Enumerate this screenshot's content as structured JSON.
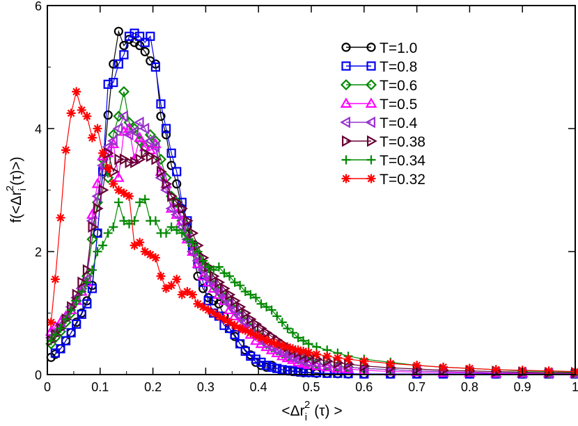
{
  "chart_data": {
    "type": "line",
    "title": "",
    "xlabel": "<Δr_i^2 (τ) >",
    "ylabel": "f(<Δr_i^2(τ)>)",
    "xlim": [
      0,
      1
    ],
    "ylim": [
      0,
      6
    ],
    "xticks": [
      "0",
      "0.1",
      "0.2",
      "0.3",
      "0.4",
      "0.5",
      "0.6",
      "0.7",
      "0.8",
      "0.9",
      "1"
    ],
    "yticks": [
      "0",
      "2",
      "4",
      "6"
    ],
    "legend_position": "top-right",
    "series": [
      {
        "name": "T=1.0",
        "color": "#000000",
        "marker": "circle",
        "x": [
          0.007,
          0.015,
          0.025,
          0.035,
          0.045,
          0.055,
          0.065,
          0.075,
          0.085,
          0.095,
          0.105,
          0.115,
          0.125,
          0.135,
          0.145,
          0.155,
          0.165,
          0.175,
          0.185,
          0.195,
          0.205,
          0.215,
          0.225,
          0.235,
          0.245,
          0.255,
          0.265,
          0.275,
          0.285,
          0.295,
          0.305,
          0.315,
          0.325,
          0.335,
          0.345,
          0.355,
          0.365,
          0.375,
          0.385,
          0.395,
          0.405,
          0.415,
          0.425,
          0.435,
          0.445,
          0.455,
          0.465,
          0.475,
          0.485,
          0.495,
          0.51,
          0.53,
          0.55,
          0.57,
          0.6,
          0.65,
          0.7,
          0.75,
          0.8,
          0.85,
          0.9,
          0.95,
          1.0
        ],
        "values": [
          0.28,
          0.33,
          0.42,
          0.55,
          0.68,
          0.85,
          1.0,
          1.2,
          1.45,
          2.3,
          3.3,
          4.22,
          5.05,
          5.58,
          5.35,
          5.45,
          5.4,
          5.35,
          5.25,
          5.1,
          5.05,
          4.2,
          3.9,
          3.4,
          3.1,
          2.7,
          2.4,
          2.0,
          1.6,
          1.4,
          1.25,
          1.2,
          1.15,
          0.95,
          0.75,
          0.62,
          0.5,
          0.4,
          0.32,
          0.2,
          0.15,
          0.12,
          0.15,
          0.1,
          0.08,
          0.06,
          0.05,
          0.04,
          0.03,
          0.03,
          0.02,
          0.02,
          0.015,
          0.01,
          0.01,
          0.01,
          0.01,
          0.01,
          0.01,
          0.01,
          0.01,
          0.01,
          0.01
        ]
      },
      {
        "name": "T=0.8",
        "color": "#0000ee",
        "marker": "square",
        "x": [
          0.015,
          0.025,
          0.035,
          0.045,
          0.055,
          0.065,
          0.075,
          0.085,
          0.095,
          0.105,
          0.115,
          0.125,
          0.135,
          0.145,
          0.155,
          0.165,
          0.175,
          0.185,
          0.195,
          0.205,
          0.215,
          0.225,
          0.235,
          0.245,
          0.255,
          0.265,
          0.275,
          0.285,
          0.295,
          0.305,
          0.315,
          0.325,
          0.335,
          0.345,
          0.355,
          0.365,
          0.375,
          0.385,
          0.395,
          0.405,
          0.415,
          0.425,
          0.435,
          0.445,
          0.455,
          0.465,
          0.475,
          0.485,
          0.495,
          0.51,
          0.53,
          0.55,
          0.57,
          0.6,
          0.65,
          0.7,
          0.75,
          0.8,
          0.85,
          0.9,
          0.95,
          1.0
        ],
        "values": [
          0.35,
          0.42,
          0.55,
          0.68,
          0.82,
          0.98,
          1.15,
          1.4,
          2.3,
          3.3,
          4.72,
          4.75,
          5.05,
          5.2,
          5.5,
          5.55,
          5.5,
          5.4,
          5.5,
          5.0,
          4.4,
          4.0,
          3.6,
          3.3,
          2.8,
          2.5,
          2.1,
          1.8,
          1.5,
          1.2,
          1.0,
          0.95,
          0.8,
          0.75,
          0.65,
          0.5,
          0.38,
          0.3,
          0.25,
          0.2,
          0.15,
          0.12,
          0.1,
          0.08,
          0.07,
          0.06,
          0.05,
          0.04,
          0.035,
          0.03,
          0.02,
          0.02,
          0.015,
          0.01,
          0.01,
          0.01,
          0.01,
          0.01,
          0.01,
          0.01,
          0.01,
          0.01
        ]
      },
      {
        "name": "T=0.6",
        "color": "#008800",
        "marker": "diamond",
        "x": [
          0.007,
          0.015,
          0.025,
          0.035,
          0.045,
          0.055,
          0.065,
          0.075,
          0.085,
          0.095,
          0.105,
          0.115,
          0.125,
          0.135,
          0.145,
          0.155,
          0.165,
          0.175,
          0.185,
          0.195,
          0.205,
          0.215,
          0.225,
          0.235,
          0.245,
          0.255,
          0.265,
          0.275,
          0.285,
          0.295,
          0.305,
          0.315,
          0.325,
          0.335,
          0.345,
          0.355,
          0.365,
          0.375,
          0.385,
          0.395,
          0.405,
          0.415,
          0.425,
          0.435,
          0.445,
          0.455,
          0.465,
          0.475,
          0.485,
          0.495,
          0.51,
          0.53,
          0.55,
          0.57,
          0.6,
          0.65,
          0.7,
          0.75,
          0.8,
          0.85,
          0.9,
          0.95,
          1.0
        ],
        "values": [
          0.5,
          0.6,
          0.7,
          0.85,
          1.0,
          1.2,
          1.4,
          1.6,
          2.2,
          2.8,
          3.5,
          3.2,
          3.9,
          4.2,
          4.6,
          4.1,
          4.0,
          3.8,
          3.7,
          3.9,
          3.8,
          3.5,
          3.2,
          2.9,
          2.8,
          2.5,
          2.3,
          2.1,
          1.95,
          1.75,
          1.6,
          1.45,
          1.35,
          1.25,
          1.15,
          1.05,
          0.95,
          0.85,
          0.75,
          0.65,
          0.6,
          0.5,
          0.45,
          0.4,
          0.35,
          0.3,
          0.28,
          0.25,
          0.22,
          0.2,
          0.18,
          0.15,
          0.13,
          0.12,
          0.1,
          0.08,
          0.06,
          0.05,
          0.04,
          0.03,
          0.03,
          0.02,
          0.02
        ]
      },
      {
        "name": "T=0.5",
        "color": "#ff00ff",
        "marker": "triangle-up",
        "x": [
          0.007,
          0.015,
          0.025,
          0.035,
          0.045,
          0.055,
          0.065,
          0.075,
          0.085,
          0.095,
          0.105,
          0.115,
          0.125,
          0.135,
          0.145,
          0.155,
          0.165,
          0.175,
          0.185,
          0.195,
          0.205,
          0.215,
          0.225,
          0.235,
          0.245,
          0.255,
          0.265,
          0.275,
          0.285,
          0.295,
          0.305,
          0.315,
          0.325,
          0.335,
          0.345,
          0.355,
          0.365,
          0.375,
          0.385,
          0.395,
          0.405,
          0.415,
          0.425,
          0.435,
          0.445,
          0.455,
          0.465,
          0.475,
          0.485,
          0.495,
          0.51,
          0.53,
          0.55,
          0.57,
          0.6,
          0.65,
          0.7,
          0.75,
          0.8,
          0.85,
          0.9,
          0.95,
          1.0
        ],
        "values": [
          0.7,
          0.78,
          0.85,
          0.95,
          1.05,
          1.2,
          1.35,
          1.5,
          2.6,
          3.1,
          3.55,
          3.6,
          3.75,
          3.2,
          3.95,
          4.0,
          3.5,
          3.85,
          3.7,
          3.65,
          3.75,
          3.3,
          3.1,
          2.7,
          2.6,
          2.5,
          2.2,
          2.0,
          1.8,
          1.6,
          1.5,
          1.4,
          1.3,
          1.2,
          1.05,
          0.95,
          0.85,
          0.75,
          0.65,
          0.55,
          0.5,
          0.45,
          0.4,
          0.35,
          0.3,
          0.27,
          0.24,
          0.2,
          0.18,
          0.16,
          0.14,
          0.12,
          0.1,
          0.09,
          0.07,
          0.05,
          0.04,
          0.03,
          0.03,
          0.02,
          0.02,
          0.02,
          0.02
        ]
      },
      {
        "name": "T=0.4",
        "color": "#9933cc",
        "marker": "triangle-left",
        "x": [
          0.007,
          0.015,
          0.025,
          0.035,
          0.045,
          0.055,
          0.065,
          0.075,
          0.085,
          0.095,
          0.105,
          0.115,
          0.125,
          0.135,
          0.145,
          0.155,
          0.165,
          0.175,
          0.185,
          0.195,
          0.205,
          0.215,
          0.225,
          0.235,
          0.245,
          0.255,
          0.265,
          0.275,
          0.285,
          0.295,
          0.305,
          0.315,
          0.325,
          0.335,
          0.345,
          0.355,
          0.365,
          0.375,
          0.385,
          0.395,
          0.405,
          0.415,
          0.425,
          0.435,
          0.445,
          0.455,
          0.465,
          0.475,
          0.485,
          0.495,
          0.51,
          0.53,
          0.55,
          0.57,
          0.6,
          0.65,
          0.7,
          0.75,
          0.8,
          0.85,
          0.9,
          0.95,
          1.0
        ],
        "values": [
          0.6,
          0.7,
          0.8,
          0.95,
          1.1,
          1.25,
          1.4,
          1.55,
          2.5,
          2.9,
          3.4,
          3.7,
          3.8,
          4.0,
          4.2,
          3.9,
          3.95,
          4.1,
          4.0,
          3.8,
          3.7,
          3.2,
          3.0,
          2.7,
          2.6,
          2.4,
          2.2,
          2.0,
          1.85,
          1.7,
          1.55,
          1.45,
          1.35,
          1.25,
          1.15,
          1.05,
          0.95,
          0.85,
          0.75,
          0.65,
          0.58,
          0.5,
          0.45,
          0.4,
          0.36,
          0.32,
          0.28,
          0.25,
          0.22,
          0.2,
          0.18,
          0.15,
          0.13,
          0.12,
          0.1,
          0.08,
          0.06,
          0.05,
          0.04,
          0.03,
          0.03,
          0.02,
          0.02
        ]
      },
      {
        "name": "T=0.38",
        "color": "#660033",
        "marker": "triangle-right",
        "x": [
          0.007,
          0.015,
          0.025,
          0.035,
          0.045,
          0.055,
          0.065,
          0.075,
          0.085,
          0.095,
          0.105,
          0.115,
          0.125,
          0.135,
          0.145,
          0.155,
          0.165,
          0.175,
          0.185,
          0.195,
          0.205,
          0.215,
          0.225,
          0.235,
          0.245,
          0.255,
          0.265,
          0.275,
          0.285,
          0.295,
          0.305,
          0.315,
          0.325,
          0.335,
          0.345,
          0.355,
          0.365,
          0.375,
          0.385,
          0.395,
          0.405,
          0.415,
          0.425,
          0.435,
          0.445,
          0.455,
          0.465,
          0.475,
          0.485,
          0.495,
          0.51,
          0.53,
          0.55,
          0.57,
          0.6,
          0.65,
          0.7,
          0.75,
          0.8,
          0.85,
          0.9,
          0.95,
          1.0
        ],
        "values": [
          0.55,
          0.65,
          0.75,
          0.9,
          1.1,
          1.3,
          1.5,
          1.7,
          2.4,
          2.7,
          3.0,
          3.6,
          3.3,
          3.5,
          3.5,
          3.45,
          3.45,
          3.5,
          3.6,
          3.55,
          3.5,
          3.3,
          3.1,
          2.9,
          2.8,
          2.7,
          2.5,
          2.3,
          2.1,
          1.9,
          1.75,
          1.6,
          1.5,
          1.4,
          1.3,
          1.2,
          1.1,
          1.0,
          0.9,
          0.82,
          0.75,
          0.68,
          0.62,
          0.56,
          0.5,
          0.45,
          0.4,
          0.36,
          0.32,
          0.28,
          0.25,
          0.22,
          0.19,
          0.17,
          0.14,
          0.11,
          0.09,
          0.07,
          0.06,
          0.05,
          0.04,
          0.03,
          0.03
        ]
      },
      {
        "name": "T=0.34",
        "color": "#008800",
        "marker": "plus",
        "x": [
          0.007,
          0.015,
          0.025,
          0.035,
          0.045,
          0.055,
          0.065,
          0.075,
          0.085,
          0.095,
          0.105,
          0.115,
          0.125,
          0.135,
          0.145,
          0.155,
          0.165,
          0.175,
          0.185,
          0.195,
          0.205,
          0.215,
          0.225,
          0.235,
          0.245,
          0.255,
          0.265,
          0.275,
          0.285,
          0.295,
          0.305,
          0.315,
          0.325,
          0.335,
          0.345,
          0.355,
          0.365,
          0.375,
          0.385,
          0.395,
          0.405,
          0.415,
          0.425,
          0.435,
          0.445,
          0.455,
          0.465,
          0.475,
          0.485,
          0.495,
          0.51,
          0.53,
          0.55,
          0.57,
          0.6,
          0.65,
          0.7,
          0.75,
          0.8,
          0.85,
          0.9,
          0.95,
          1.0
        ],
        "values": [
          0.55,
          0.65,
          0.75,
          0.9,
          1.05,
          1.2,
          1.35,
          1.5,
          1.7,
          2.0,
          2.1,
          2.3,
          2.4,
          2.8,
          2.5,
          2.45,
          2.5,
          2.8,
          2.85,
          2.5,
          2.5,
          2.3,
          2.3,
          2.4,
          2.35,
          2.3,
          2.2,
          2.15,
          2.0,
          1.85,
          1.75,
          1.7,
          1.75,
          1.65,
          1.6,
          1.5,
          1.45,
          1.35,
          1.3,
          1.25,
          1.15,
          1.1,
          1.05,
          0.95,
          0.85,
          0.75,
          0.68,
          0.6,
          0.55,
          0.5,
          0.45,
          0.4,
          0.35,
          0.3,
          0.25,
          0.2,
          0.15,
          0.12,
          0.1,
          0.08,
          0.06,
          0.05,
          0.04
        ]
      },
      {
        "name": "T=0.32",
        "color": "#ff0000",
        "marker": "star",
        "x": [
          0.007,
          0.015,
          0.025,
          0.035,
          0.045,
          0.055,
          0.065,
          0.075,
          0.085,
          0.095,
          0.105,
          0.115,
          0.125,
          0.135,
          0.145,
          0.155,
          0.165,
          0.175,
          0.185,
          0.195,
          0.205,
          0.215,
          0.225,
          0.235,
          0.245,
          0.255,
          0.265,
          0.275,
          0.285,
          0.295,
          0.305,
          0.315,
          0.325,
          0.335,
          0.345,
          0.355,
          0.365,
          0.375,
          0.385,
          0.395,
          0.405,
          0.415,
          0.425,
          0.435,
          0.445,
          0.455,
          0.465,
          0.475,
          0.485,
          0.495,
          0.51,
          0.53,
          0.55,
          0.57,
          0.6,
          0.65,
          0.7,
          0.75,
          0.8,
          0.85,
          0.9,
          0.95,
          1.0
        ],
        "values": [
          0.85,
          1.55,
          2.55,
          3.65,
          4.25,
          4.6,
          4.3,
          4.2,
          3.85,
          4.0,
          3.6,
          3.35,
          3.1,
          3.0,
          2.95,
          2.9,
          2.1,
          2.15,
          2.0,
          1.95,
          1.9,
          1.6,
          1.4,
          1.45,
          1.55,
          1.3,
          1.35,
          1.3,
          1.15,
          1.1,
          1.05,
          1.0,
          0.95,
          0.9,
          0.85,
          0.8,
          0.75,
          0.72,
          0.68,
          0.64,
          0.6,
          0.56,
          0.52,
          0.5,
          0.47,
          0.45,
          0.42,
          0.4,
          0.38,
          0.36,
          0.33,
          0.3,
          0.27,
          0.25,
          0.22,
          0.18,
          0.15,
          0.12,
          0.1,
          0.08,
          0.07,
          0.06,
          0.05
        ]
      }
    ]
  }
}
